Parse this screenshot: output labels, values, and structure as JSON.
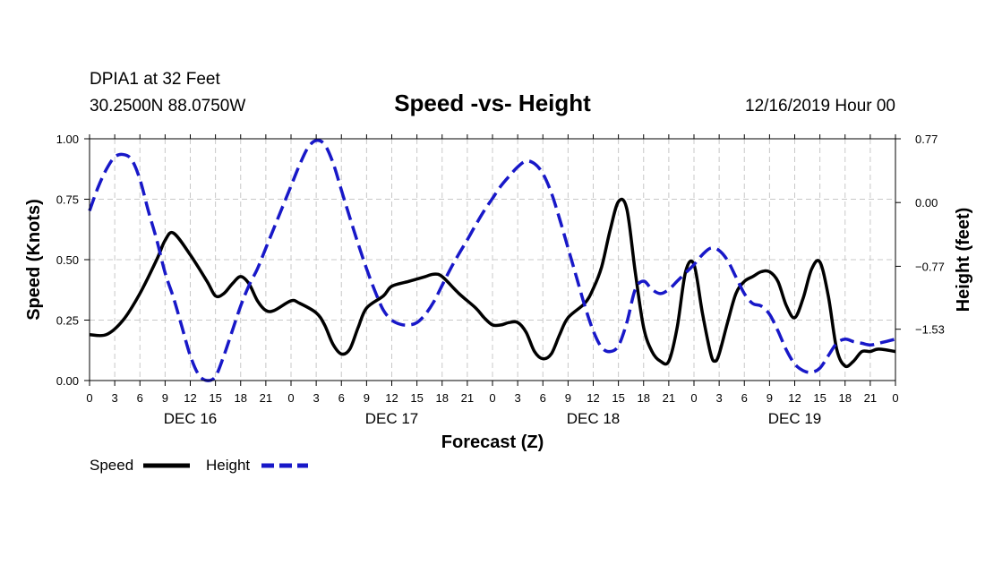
{
  "header": {
    "station": "DPIA1 at 32 Feet",
    "coords": "30.2500N 88.0750W",
    "run": "12/16/2019 Hour 00"
  },
  "chart_data": {
    "type": "line",
    "title": "Speed -vs- Height",
    "xlabel": "Forecast (Z)",
    "ylabel": "Speed (Knots)",
    "y2label": "Height (feet)",
    "ylim": [
      0,
      1.0
    ],
    "y2lim": [
      -2.15,
      0.77
    ],
    "x_unit": "hours since 12/16/2019 00Z",
    "xlim": [
      0,
      96
    ],
    "x_ticks": [
      {
        "h": 0,
        "label": "0"
      },
      {
        "h": 3,
        "label": "3"
      },
      {
        "h": 6,
        "label": "6"
      },
      {
        "h": 9,
        "label": "9"
      },
      {
        "h": 12,
        "label": "12"
      },
      {
        "h": 15,
        "label": "15"
      },
      {
        "h": 18,
        "label": "18"
      },
      {
        "h": 21,
        "label": "21"
      },
      {
        "h": 24,
        "label": "0"
      },
      {
        "h": 27,
        "label": "3"
      },
      {
        "h": 30,
        "label": "6"
      },
      {
        "h": 33,
        "label": "9"
      },
      {
        "h": 36,
        "label": "12"
      },
      {
        "h": 39,
        "label": "15"
      },
      {
        "h": 42,
        "label": "18"
      },
      {
        "h": 45,
        "label": "21"
      },
      {
        "h": 48,
        "label": "0"
      },
      {
        "h": 51,
        "label": "3"
      },
      {
        "h": 54,
        "label": "6"
      },
      {
        "h": 57,
        "label": "9"
      },
      {
        "h": 60,
        "label": "12"
      },
      {
        "h": 63,
        "label": "15"
      },
      {
        "h": 66,
        "label": "18"
      },
      {
        "h": 69,
        "label": "21"
      },
      {
        "h": 72,
        "label": "0"
      },
      {
        "h": 75,
        "label": "3"
      },
      {
        "h": 78,
        "label": "6"
      },
      {
        "h": 81,
        "label": "9"
      },
      {
        "h": 84,
        "label": "12"
      },
      {
        "h": 87,
        "label": "15"
      },
      {
        "h": 90,
        "label": "18"
      },
      {
        "h": 93,
        "label": "21"
      },
      {
        "h": 96,
        "label": "0"
      }
    ],
    "day_labels": [
      {
        "h": 12,
        "label": "DEC 16"
      },
      {
        "h": 36,
        "label": "DEC 17"
      },
      {
        "h": 60,
        "label": "DEC 18"
      },
      {
        "h": 84,
        "label": "DEC 19"
      }
    ],
    "y_ticks": [
      {
        "v": 0.0,
        "label": "0.00"
      },
      {
        "v": 0.25,
        "label": "0.25"
      },
      {
        "v": 0.5,
        "label": "0.50"
      },
      {
        "v": 0.75,
        "label": "0.75"
      },
      {
        "v": 1.0,
        "label": "1.00"
      }
    ],
    "y2_ticks": [
      {
        "v": 0.77,
        "label": "0.77"
      },
      {
        "v": 0.0,
        "label": "0.00"
      },
      {
        "v": -0.77,
        "label": "−0.77"
      },
      {
        "v": -1.53,
        "label": "−1.53"
      }
    ],
    "series": [
      {
        "name": "Speed",
        "axis": "left",
        "color": "#000000",
        "dash": "solid",
        "points": [
          [
            0,
            0.19
          ],
          [
            2,
            0.19
          ],
          [
            4,
            0.25
          ],
          [
            6,
            0.36
          ],
          [
            8,
            0.5
          ],
          [
            9,
            0.58
          ],
          [
            10,
            0.61
          ],
          [
            12,
            0.52
          ],
          [
            14,
            0.41
          ],
          [
            15,
            0.35
          ],
          [
            16,
            0.36
          ],
          [
            17,
            0.4
          ],
          [
            18,
            0.43
          ],
          [
            19,
            0.4
          ],
          [
            20,
            0.33
          ],
          [
            21,
            0.29
          ],
          [
            22,
            0.29
          ],
          [
            24,
            0.33
          ],
          [
            25,
            0.32
          ],
          [
            27,
            0.28
          ],
          [
            28,
            0.23
          ],
          [
            29,
            0.15
          ],
          [
            30,
            0.11
          ],
          [
            31,
            0.13
          ],
          [
            32,
            0.22
          ],
          [
            33,
            0.3
          ],
          [
            35,
            0.35
          ],
          [
            36,
            0.39
          ],
          [
            38,
            0.41
          ],
          [
            40,
            0.43
          ],
          [
            41,
            0.44
          ],
          [
            42,
            0.43
          ],
          [
            44,
            0.36
          ],
          [
            46,
            0.3
          ],
          [
            47,
            0.26
          ],
          [
            48,
            0.23
          ],
          [
            49,
            0.23
          ],
          [
            50,
            0.24
          ],
          [
            51,
            0.24
          ],
          [
            52,
            0.2
          ],
          [
            53,
            0.12
          ],
          [
            54,
            0.09
          ],
          [
            55,
            0.11
          ],
          [
            56,
            0.19
          ],
          [
            57,
            0.26
          ],
          [
            59,
            0.32
          ],
          [
            60,
            0.38
          ],
          [
            61,
            0.47
          ],
          [
            62,
            0.62
          ],
          [
            63,
            0.74
          ],
          [
            64,
            0.71
          ],
          [
            65,
            0.45
          ],
          [
            66,
            0.22
          ],
          [
            67,
            0.12
          ],
          [
            68,
            0.08
          ],
          [
            69,
            0.08
          ],
          [
            70,
            0.22
          ],
          [
            71,
            0.45
          ],
          [
            72,
            0.48
          ],
          [
            73,
            0.28
          ],
          [
            74,
            0.11
          ],
          [
            74.5,
            0.08
          ],
          [
            75,
            0.11
          ],
          [
            76,
            0.24
          ],
          [
            77,
            0.36
          ],
          [
            78,
            0.41
          ],
          [
            79,
            0.43
          ],
          [
            80,
            0.45
          ],
          [
            81,
            0.45
          ],
          [
            82,
            0.41
          ],
          [
            83,
            0.31
          ],
          [
            84,
            0.26
          ],
          [
            85,
            0.34
          ],
          [
            86,
            0.46
          ],
          [
            87,
            0.49
          ],
          [
            88,
            0.35
          ],
          [
            89,
            0.13
          ],
          [
            90,
            0.06
          ],
          [
            91,
            0.08
          ],
          [
            92,
            0.12
          ],
          [
            93,
            0.12
          ],
          [
            94,
            0.13
          ],
          [
            96,
            0.12
          ]
        ]
      },
      {
        "name": "Height",
        "axis": "right",
        "color": "#1818c8",
        "dash": "dashed",
        "points": [
          [
            0,
            -0.1
          ],
          [
            1,
            0.18
          ],
          [
            2,
            0.4
          ],
          [
            3,
            0.55
          ],
          [
            4,
            0.58
          ],
          [
            5,
            0.52
          ],
          [
            6,
            0.28
          ],
          [
            7,
            -0.1
          ],
          [
            8,
            -0.45
          ],
          [
            9,
            -0.85
          ],
          [
            10,
            -1.15
          ],
          [
            11,
            -1.5
          ],
          [
            12,
            -1.85
          ],
          [
            13,
            -2.08
          ],
          [
            14,
            -2.15
          ],
          [
            15,
            -2.1
          ],
          [
            16,
            -1.85
          ],
          [
            17,
            -1.55
          ],
          [
            18,
            -1.25
          ],
          [
            19,
            -1.0
          ],
          [
            20,
            -0.8
          ],
          [
            21,
            -0.55
          ],
          [
            22,
            -0.3
          ],
          [
            23,
            -0.05
          ],
          [
            24,
            0.2
          ],
          [
            25,
            0.45
          ],
          [
            26,
            0.66
          ],
          [
            27,
            0.75
          ],
          [
            28,
            0.7
          ],
          [
            29,
            0.48
          ],
          [
            30,
            0.15
          ],
          [
            31,
            -0.18
          ],
          [
            32,
            -0.5
          ],
          [
            33,
            -0.8
          ],
          [
            34,
            -1.07
          ],
          [
            35,
            -1.3
          ],
          [
            36,
            -1.42
          ],
          [
            37,
            -1.47
          ],
          [
            38,
            -1.48
          ],
          [
            39,
            -1.45
          ],
          [
            40,
            -1.35
          ],
          [
            41,
            -1.2
          ],
          [
            42,
            -1.0
          ],
          [
            43,
            -0.8
          ],
          [
            44,
            -0.62
          ],
          [
            45,
            -0.45
          ],
          [
            46,
            -0.27
          ],
          [
            47,
            -0.1
          ],
          [
            48,
            0.05
          ],
          [
            49,
            0.2
          ],
          [
            50,
            0.32
          ],
          [
            51,
            0.43
          ],
          [
            52,
            0.5
          ],
          [
            53,
            0.47
          ],
          [
            54,
            0.35
          ],
          [
            55,
            0.12
          ],
          [
            56,
            -0.2
          ],
          [
            57,
            -0.55
          ],
          [
            58,
            -0.9
          ],
          [
            59,
            -1.25
          ],
          [
            60,
            -1.55
          ],
          [
            61,
            -1.75
          ],
          [
            62,
            -1.8
          ],
          [
            63,
            -1.73
          ],
          [
            64,
            -1.45
          ],
          [
            65,
            -1.05
          ],
          [
            66,
            -0.95
          ],
          [
            67,
            -1.05
          ],
          [
            68,
            -1.1
          ],
          [
            69,
            -1.05
          ],
          [
            70,
            -0.95
          ],
          [
            71,
            -0.85
          ],
          [
            72,
            -0.75
          ],
          [
            73,
            -0.63
          ],
          [
            74,
            -0.55
          ],
          [
            75,
            -0.58
          ],
          [
            76,
            -0.7
          ],
          [
            77,
            -0.9
          ],
          [
            78,
            -1.1
          ],
          [
            79,
            -1.22
          ],
          [
            80,
            -1.25
          ],
          [
            81,
            -1.35
          ],
          [
            82,
            -1.55
          ],
          [
            83,
            -1.78
          ],
          [
            84,
            -1.95
          ],
          [
            85,
            -2.03
          ],
          [
            86,
            -2.05
          ],
          [
            87,
            -2.0
          ],
          [
            88,
            -1.85
          ],
          [
            89,
            -1.7
          ],
          [
            90,
            -1.65
          ],
          [
            91,
            -1.68
          ],
          [
            92,
            -1.7
          ],
          [
            93,
            -1.72
          ],
          [
            94,
            -1.7
          ],
          [
            96,
            -1.65
          ]
        ]
      }
    ]
  },
  "legend": {
    "speed_label": "Speed",
    "height_label": "Height",
    "position": "bottom-left"
  }
}
